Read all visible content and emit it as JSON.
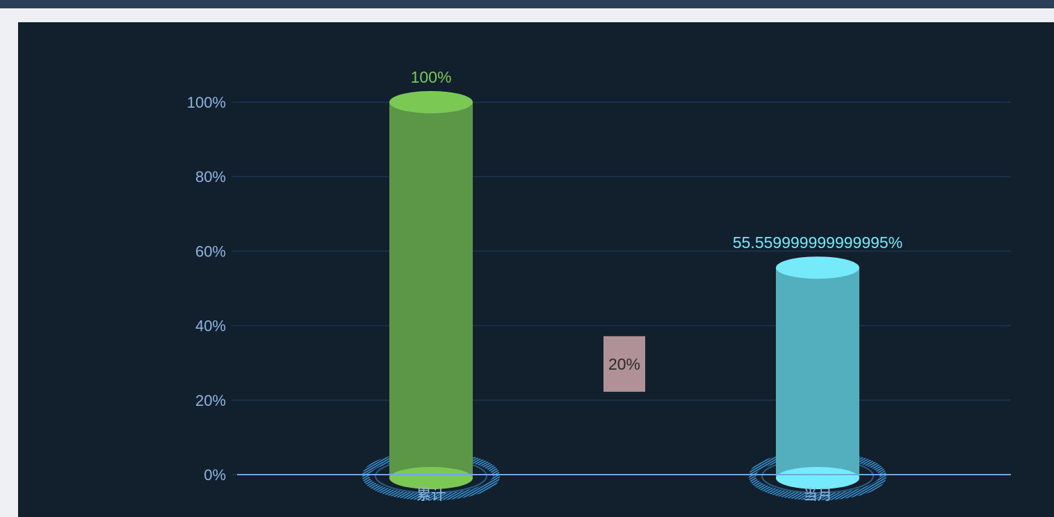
{
  "colors": {
    "background": "#12202e",
    "grid": "#1c3358",
    "axis": "#6ea8e6",
    "tick_text": "#8fb4e3",
    "cumulative_body": "#5b9747",
    "cumulative_top": "#7cc855",
    "month_body": "#53aebd",
    "month_top": "#76e9fb",
    "ring": "#3a8fd0",
    "marker_box": "#b09197",
    "marker_text": "#2a2a2a"
  },
  "chart_data": {
    "type": "bar",
    "style": "3d-cylinder",
    "categories": [
      "累计",
      "当月"
    ],
    "values": [
      100,
      55.559999999999995
    ],
    "value_labels": [
      "100%",
      "55.559999999999995%"
    ],
    "series_colors": [
      "#7cc855",
      "#76e9fb"
    ],
    "yticks": [
      "0%",
      "20%",
      "40%",
      "60%",
      "80%",
      "100%"
    ],
    "ylim": [
      0,
      100
    ],
    "grid": true,
    "markers": [
      {
        "value": 20,
        "label": "20%"
      }
    ]
  }
}
